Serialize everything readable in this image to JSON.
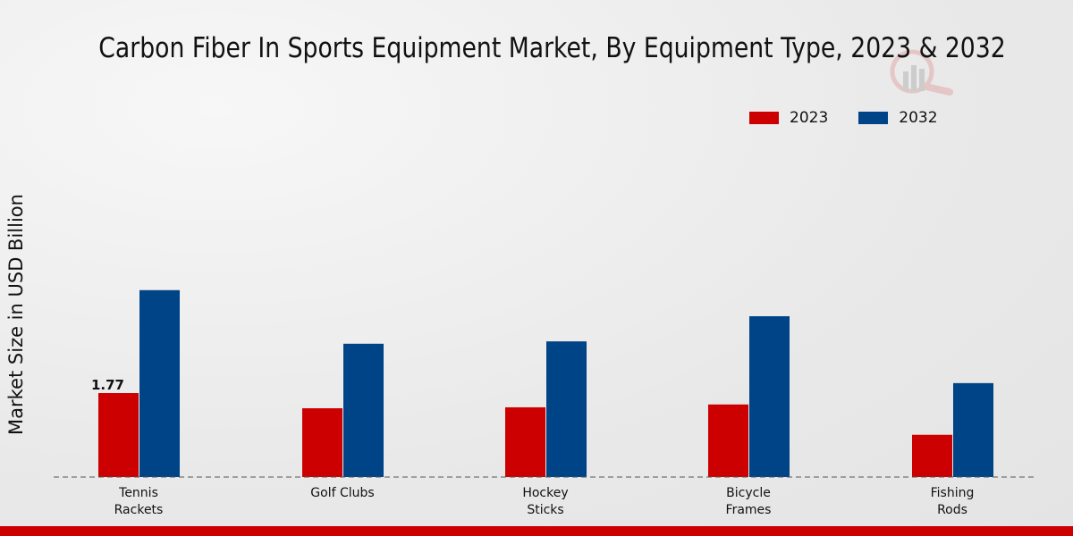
{
  "chart_data": {
    "type": "bar",
    "title": "Carbon Fiber In Sports Equipment Market, By Equipment Type, 2023 & 2032",
    "xlabel": "",
    "ylabel": "Market Size in USD Billion",
    "categories": [
      [
        "Tennis",
        "Rackets"
      ],
      [
        "Golf Clubs"
      ],
      [
        "Hockey",
        "Sticks"
      ],
      [
        "Bicycle",
        "Frames"
      ],
      [
        "Fishing",
        "Rods"
      ]
    ],
    "series": [
      {
        "name": "2023",
        "color": "#cc0000",
        "values": [
          1.77,
          1.45,
          1.47,
          1.53,
          0.89
        ]
      },
      {
        "name": "2032",
        "color": "#004488",
        "values": [
          3.94,
          2.81,
          2.86,
          3.39,
          1.98
        ]
      }
    ],
    "data_labels": [
      {
        "series": 0,
        "index": 0,
        "text": "1.77"
      }
    ],
    "ylim": [
      0,
      9.5
    ],
    "grid": false,
    "legend_position": "top-right"
  }
}
